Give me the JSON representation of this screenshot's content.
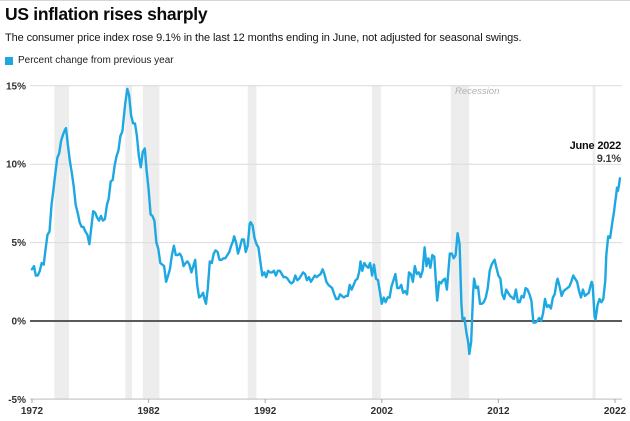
{
  "header": {
    "title": "US inflation rises sharply",
    "subtitle": "The consumer price index rose 9.1% in the last 12 months ending in June, not adjusted for seasonal swings."
  },
  "legend": {
    "label": "Percent change from previous year",
    "swatch_color": "#1da8e2"
  },
  "chart_data": {
    "type": "line",
    "title": "US inflation rises sharply",
    "series_name": "Percent change from previous year",
    "xlabel": "",
    "ylabel": "",
    "xlim": [
      1972,
      2022.5
    ],
    "ylim": [
      -5,
      15
    ],
    "grid": true,
    "x_ticks": [
      1972,
      1982,
      1992,
      2002,
      2012,
      2022
    ],
    "y_tick_values": [
      15,
      10,
      5,
      0,
      -5
    ],
    "y_tick_labels": [
      "15%",
      "10%",
      "5%",
      "0%",
      "-5%"
    ],
    "line_color": "#1da8e2",
    "grid_color": "#dcdcdc",
    "zero_line_color": "#5a5a5c",
    "axis_line_color": "#c9c9c9",
    "tick_mark_color": "#a8a8a8",
    "recession_band_color": "#ededed",
    "annotations": {
      "recession": "Recession",
      "end_label": "June 2022",
      "end_value": "9.1%"
    },
    "recession_bands": [
      [
        1973.92,
        1975.17
      ],
      [
        1980.0,
        1980.58
      ],
      [
        1981.5,
        1982.92
      ],
      [
        1990.5,
        1991.25
      ],
      [
        2001.17,
        2001.92
      ],
      [
        2007.92,
        2009.5
      ],
      [
        2020.08,
        2020.33
      ]
    ],
    "points": [
      [
        1972.0,
        3.3
      ],
      [
        1972.17,
        3.5
      ],
      [
        1972.33,
        2.9
      ],
      [
        1972.5,
        2.9
      ],
      [
        1972.67,
        3.2
      ],
      [
        1972.83,
        3.7
      ],
      [
        1973.0,
        3.6
      ],
      [
        1973.17,
        4.6
      ],
      [
        1973.33,
        5.5
      ],
      [
        1973.5,
        5.7
      ],
      [
        1973.67,
        7.4
      ],
      [
        1973.83,
        8.3
      ],
      [
        1974.0,
        9.4
      ],
      [
        1974.17,
        10.4
      ],
      [
        1974.33,
        10.7
      ],
      [
        1974.5,
        11.5
      ],
      [
        1974.67,
        11.9
      ],
      [
        1974.83,
        12.2
      ],
      [
        1974.92,
        12.3
      ],
      [
        1975.08,
        11.2
      ],
      [
        1975.25,
        10.2
      ],
      [
        1975.42,
        9.4
      ],
      [
        1975.58,
        8.6
      ],
      [
        1975.75,
        7.4
      ],
      [
        1975.92,
        6.9
      ],
      [
        1976.08,
        6.3
      ],
      [
        1976.25,
        6.0
      ],
      [
        1976.42,
        6.0
      ],
      [
        1976.58,
        5.7
      ],
      [
        1976.75,
        5.5
      ],
      [
        1976.92,
        4.9
      ],
      [
        1977.08,
        5.9
      ],
      [
        1977.25,
        7.0
      ],
      [
        1977.42,
        6.9
      ],
      [
        1977.58,
        6.6
      ],
      [
        1977.75,
        6.4
      ],
      [
        1977.92,
        6.7
      ],
      [
        1978.08,
        6.4
      ],
      [
        1978.25,
        6.5
      ],
      [
        1978.42,
        7.4
      ],
      [
        1978.58,
        7.8
      ],
      [
        1978.75,
        8.9
      ],
      [
        1978.92,
        9.0
      ],
      [
        1979.08,
        9.9
      ],
      [
        1979.25,
        10.5
      ],
      [
        1979.42,
        10.9
      ],
      [
        1979.58,
        11.8
      ],
      [
        1979.75,
        12.1
      ],
      [
        1979.92,
        13.3
      ],
      [
        1980.0,
        13.9
      ],
      [
        1980.17,
        14.8
      ],
      [
        1980.33,
        14.4
      ],
      [
        1980.5,
        13.1
      ],
      [
        1980.67,
        12.6
      ],
      [
        1980.83,
        12.6
      ],
      [
        1981.0,
        11.8
      ],
      [
        1981.17,
        10.5
      ],
      [
        1981.33,
        9.8
      ],
      [
        1981.5,
        10.8
      ],
      [
        1981.67,
        11.0
      ],
      [
        1981.83,
        9.6
      ],
      [
        1982.0,
        8.4
      ],
      [
        1982.17,
        6.8
      ],
      [
        1982.33,
        6.7
      ],
      [
        1982.5,
        6.4
      ],
      [
        1982.67,
        5.0
      ],
      [
        1982.83,
        4.6
      ],
      [
        1983.0,
        3.7
      ],
      [
        1983.17,
        3.6
      ],
      [
        1983.33,
        3.5
      ],
      [
        1983.5,
        2.5
      ],
      [
        1983.67,
        2.9
      ],
      [
        1983.83,
        3.3
      ],
      [
        1984.0,
        4.2
      ],
      [
        1984.17,
        4.8
      ],
      [
        1984.33,
        4.2
      ],
      [
        1984.5,
        4.2
      ],
      [
        1984.67,
        4.3
      ],
      [
        1984.83,
        4.1
      ],
      [
        1985.0,
        3.5
      ],
      [
        1985.17,
        3.7
      ],
      [
        1985.33,
        3.8
      ],
      [
        1985.5,
        3.6
      ],
      [
        1985.67,
        3.1
      ],
      [
        1985.83,
        3.5
      ],
      [
        1986.0,
        3.9
      ],
      [
        1986.17,
        2.3
      ],
      [
        1986.33,
        1.5
      ],
      [
        1986.5,
        1.6
      ],
      [
        1986.67,
        1.8
      ],
      [
        1986.83,
        1.3
      ],
      [
        1986.92,
        1.1
      ],
      [
        1987.08,
        2.1
      ],
      [
        1987.25,
        3.8
      ],
      [
        1987.42,
        3.7
      ],
      [
        1987.58,
        4.3
      ],
      [
        1987.75,
        4.5
      ],
      [
        1987.92,
        4.4
      ],
      [
        1988.08,
        3.9
      ],
      [
        1988.25,
        3.9
      ],
      [
        1988.42,
        4.0
      ],
      [
        1988.58,
        4.0
      ],
      [
        1988.75,
        4.2
      ],
      [
        1988.92,
        4.4
      ],
      [
        1989.08,
        4.8
      ],
      [
        1989.25,
        5.1
      ],
      [
        1989.33,
        5.4
      ],
      [
        1989.5,
        5.0
      ],
      [
        1989.67,
        4.3
      ],
      [
        1989.83,
        4.7
      ],
      [
        1990.0,
        5.2
      ],
      [
        1990.17,
        5.2
      ],
      [
        1990.33,
        4.4
      ],
      [
        1990.5,
        4.8
      ],
      [
        1990.67,
        6.2
      ],
      [
        1990.75,
        6.3
      ],
      [
        1990.92,
        6.1
      ],
      [
        1991.08,
        5.3
      ],
      [
        1991.25,
        4.9
      ],
      [
        1991.42,
        4.7
      ],
      [
        1991.58,
        3.8
      ],
      [
        1991.75,
        2.9
      ],
      [
        1991.92,
        3.1
      ],
      [
        1992.08,
        2.8
      ],
      [
        1992.25,
        3.2
      ],
      [
        1992.42,
        3.1
      ],
      [
        1992.58,
        3.1
      ],
      [
        1992.75,
        3.2
      ],
      [
        1992.92,
        2.9
      ],
      [
        1993.08,
        3.2
      ],
      [
        1993.25,
        3.2
      ],
      [
        1993.42,
        3.0
      ],
      [
        1993.58,
        2.8
      ],
      [
        1993.75,
        2.8
      ],
      [
        1993.92,
        2.7
      ],
      [
        1994.08,
        2.5
      ],
      [
        1994.25,
        2.4
      ],
      [
        1994.42,
        2.5
      ],
      [
        1994.58,
        2.9
      ],
      [
        1994.75,
        2.6
      ],
      [
        1994.92,
        2.7
      ],
      [
        1995.08,
        2.9
      ],
      [
        1995.25,
        3.1
      ],
      [
        1995.42,
        3.0
      ],
      [
        1995.58,
        2.6
      ],
      [
        1995.75,
        2.8
      ],
      [
        1995.92,
        2.5
      ],
      [
        1996.08,
        2.7
      ],
      [
        1996.25,
        2.9
      ],
      [
        1996.42,
        2.8
      ],
      [
        1996.58,
        2.9
      ],
      [
        1996.75,
        3.0
      ],
      [
        1996.92,
        3.3
      ],
      [
        1997.08,
        3.0
      ],
      [
        1997.25,
        2.5
      ],
      [
        1997.42,
        2.3
      ],
      [
        1997.58,
        2.2
      ],
      [
        1997.75,
        2.1
      ],
      [
        1997.92,
        1.7
      ],
      [
        1998.08,
        1.4
      ],
      [
        1998.25,
        1.4
      ],
      [
        1998.42,
        1.7
      ],
      [
        1998.58,
        1.6
      ],
      [
        1998.75,
        1.5
      ],
      [
        1998.92,
        1.6
      ],
      [
        1999.08,
        1.6
      ],
      [
        1999.25,
        2.3
      ],
      [
        1999.42,
        2.0
      ],
      [
        1999.58,
        2.3
      ],
      [
        1999.75,
        2.6
      ],
      [
        1999.92,
        2.7
      ],
      [
        2000.08,
        3.2
      ],
      [
        2000.17,
        3.8
      ],
      [
        2000.33,
        3.2
      ],
      [
        2000.5,
        3.7
      ],
      [
        2000.67,
        3.5
      ],
      [
        2000.83,
        3.4
      ],
      [
        2001.0,
        3.7
      ],
      [
        2001.17,
        2.9
      ],
      [
        2001.33,
        3.6
      ],
      [
        2001.5,
        2.7
      ],
      [
        2001.67,
        2.6
      ],
      [
        2001.83,
        1.9
      ],
      [
        2002.0,
        1.1
      ],
      [
        2002.17,
        1.5
      ],
      [
        2002.33,
        1.2
      ],
      [
        2002.5,
        1.5
      ],
      [
        2002.67,
        1.5
      ],
      [
        2002.83,
        2.2
      ],
      [
        2003.0,
        2.6
      ],
      [
        2003.17,
        3.0
      ],
      [
        2003.33,
        2.1
      ],
      [
        2003.5,
        2.1
      ],
      [
        2003.67,
        2.3
      ],
      [
        2003.83,
        1.8
      ],
      [
        2004.0,
        1.9
      ],
      [
        2004.17,
        1.7
      ],
      [
        2004.33,
        3.1
      ],
      [
        2004.5,
        3.0
      ],
      [
        2004.67,
        2.5
      ],
      [
        2004.83,
        3.5
      ],
      [
        2005.0,
        3.0
      ],
      [
        2005.17,
        3.1
      ],
      [
        2005.33,
        2.8
      ],
      [
        2005.5,
        3.2
      ],
      [
        2005.67,
        4.7
      ],
      [
        2005.83,
        3.5
      ],
      [
        2006.0,
        4.0
      ],
      [
        2006.17,
        3.4
      ],
      [
        2006.33,
        4.2
      ],
      [
        2006.5,
        4.1
      ],
      [
        2006.67,
        2.1
      ],
      [
        2006.75,
        1.3
      ],
      [
        2006.92,
        2.5
      ],
      [
        2007.08,
        2.4
      ],
      [
        2007.25,
        2.6
      ],
      [
        2007.42,
        2.7
      ],
      [
        2007.58,
        2.0
      ],
      [
        2007.75,
        3.5
      ],
      [
        2007.83,
        4.3
      ],
      [
        2008.0,
        4.3
      ],
      [
        2008.17,
        4.0
      ],
      [
        2008.33,
        4.2
      ],
      [
        2008.5,
        5.6
      ],
      [
        2008.67,
        4.9
      ],
      [
        2008.83,
        1.1
      ],
      [
        2008.92,
        0.1
      ],
      [
        2009.08,
        0.2
      ],
      [
        2009.25,
        -0.7
      ],
      [
        2009.42,
        -1.4
      ],
      [
        2009.5,
        -2.1
      ],
      [
        2009.67,
        -1.3
      ],
      [
        2009.83,
        1.8
      ],
      [
        2009.92,
        2.7
      ],
      [
        2010.08,
        2.1
      ],
      [
        2010.25,
        2.2
      ],
      [
        2010.42,
        1.1
      ],
      [
        2010.58,
        1.1
      ],
      [
        2010.75,
        1.2
      ],
      [
        2010.92,
        1.5
      ],
      [
        2011.08,
        2.1
      ],
      [
        2011.25,
        3.2
      ],
      [
        2011.42,
        3.6
      ],
      [
        2011.58,
        3.8
      ],
      [
        2011.67,
        3.9
      ],
      [
        2011.83,
        3.4
      ],
      [
        2012.0,
        2.9
      ],
      [
        2012.17,
        2.7
      ],
      [
        2012.33,
        1.7
      ],
      [
        2012.5,
        1.4
      ],
      [
        2012.67,
        2.0
      ],
      [
        2012.83,
        1.8
      ],
      [
        2013.0,
        1.6
      ],
      [
        2013.17,
        1.5
      ],
      [
        2013.33,
        1.4
      ],
      [
        2013.5,
        2.0
      ],
      [
        2013.67,
        1.2
      ],
      [
        2013.83,
        1.2
      ],
      [
        2014.0,
        1.6
      ],
      [
        2014.17,
        1.5
      ],
      [
        2014.33,
        2.1
      ],
      [
        2014.5,
        2.0
      ],
      [
        2014.67,
        1.7
      ],
      [
        2014.83,
        1.3
      ],
      [
        2015.0,
        -0.1
      ],
      [
        2015.17,
        -0.1
      ],
      [
        2015.33,
        0.0
      ],
      [
        2015.5,
        0.2
      ],
      [
        2015.67,
        0.0
      ],
      [
        2015.83,
        0.5
      ],
      [
        2016.0,
        1.4
      ],
      [
        2016.17,
        0.9
      ],
      [
        2016.33,
        1.0
      ],
      [
        2016.5,
        0.8
      ],
      [
        2016.67,
        1.5
      ],
      [
        2016.83,
        1.7
      ],
      [
        2017.0,
        2.5
      ],
      [
        2017.08,
        2.7
      ],
      [
        2017.25,
        2.2
      ],
      [
        2017.42,
        1.6
      ],
      [
        2017.58,
        1.9
      ],
      [
        2017.75,
        2.0
      ],
      [
        2017.92,
        2.1
      ],
      [
        2018.08,
        2.2
      ],
      [
        2018.25,
        2.5
      ],
      [
        2018.42,
        2.9
      ],
      [
        2018.58,
        2.7
      ],
      [
        2018.75,
        2.5
      ],
      [
        2018.92,
        1.9
      ],
      [
        2019.08,
        1.5
      ],
      [
        2019.25,
        2.0
      ],
      [
        2019.42,
        1.6
      ],
      [
        2019.58,
        1.7
      ],
      [
        2019.75,
        1.8
      ],
      [
        2019.92,
        2.3
      ],
      [
        2020.0,
        2.5
      ],
      [
        2020.08,
        2.3
      ],
      [
        2020.25,
        0.3
      ],
      [
        2020.33,
        0.1
      ],
      [
        2020.5,
        1.0
      ],
      [
        2020.67,
        1.4
      ],
      [
        2020.83,
        1.2
      ],
      [
        2021.0,
        1.4
      ],
      [
        2021.17,
        2.6
      ],
      [
        2021.25,
        4.2
      ],
      [
        2021.42,
        5.4
      ],
      [
        2021.58,
        5.3
      ],
      [
        2021.75,
        6.2
      ],
      [
        2021.92,
        7.0
      ],
      [
        2022.0,
        7.5
      ],
      [
        2022.08,
        7.9
      ],
      [
        2022.17,
        8.5
      ],
      [
        2022.25,
        8.3
      ],
      [
        2022.33,
        8.6
      ],
      [
        2022.42,
        9.1
      ]
    ]
  }
}
